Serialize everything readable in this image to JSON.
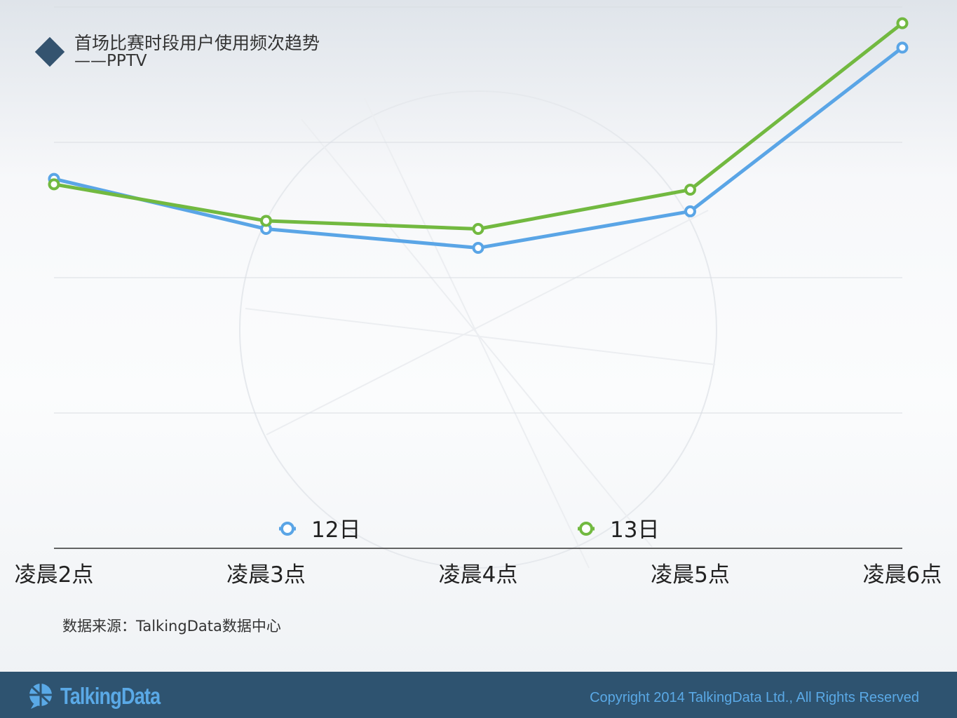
{
  "header": {
    "title": "首场比赛时段用户使用频次趋势",
    "subtitle": "——PPTV"
  },
  "source_note": "数据来源：TalkingData数据中心",
  "footer": {
    "logo_text": "TalkingData",
    "copyright": "Copyright 2014 TalkingData Ltd., All Rights Reserved"
  },
  "colors": {
    "series_12": "#5aa5e6",
    "series_13": "#72b940",
    "title_icon": "#34536f",
    "footer_bg": "#2e5370",
    "footer_text": "#5aa9e6"
  },
  "chart_data": {
    "type": "line",
    "title": "首场比赛时段用户使用频次趋势",
    "subtitle": "——PPTV",
    "categories": [
      "凌晨2点",
      "凌晨3点",
      "凌晨4点",
      "凌晨5点",
      "凌晨6点"
    ],
    "series": [
      {
        "name": "12日",
        "values": [
          2.73,
          2.36,
          2.22,
          2.49,
          3.7
        ]
      },
      {
        "name": "13日",
        "values": [
          2.69,
          2.42,
          2.36,
          2.65,
          3.88
        ]
      }
    ],
    "ylim": [
      0,
      4
    ],
    "y_tick_labels_shown": false,
    "grid": true,
    "legend_position": "bottom"
  }
}
